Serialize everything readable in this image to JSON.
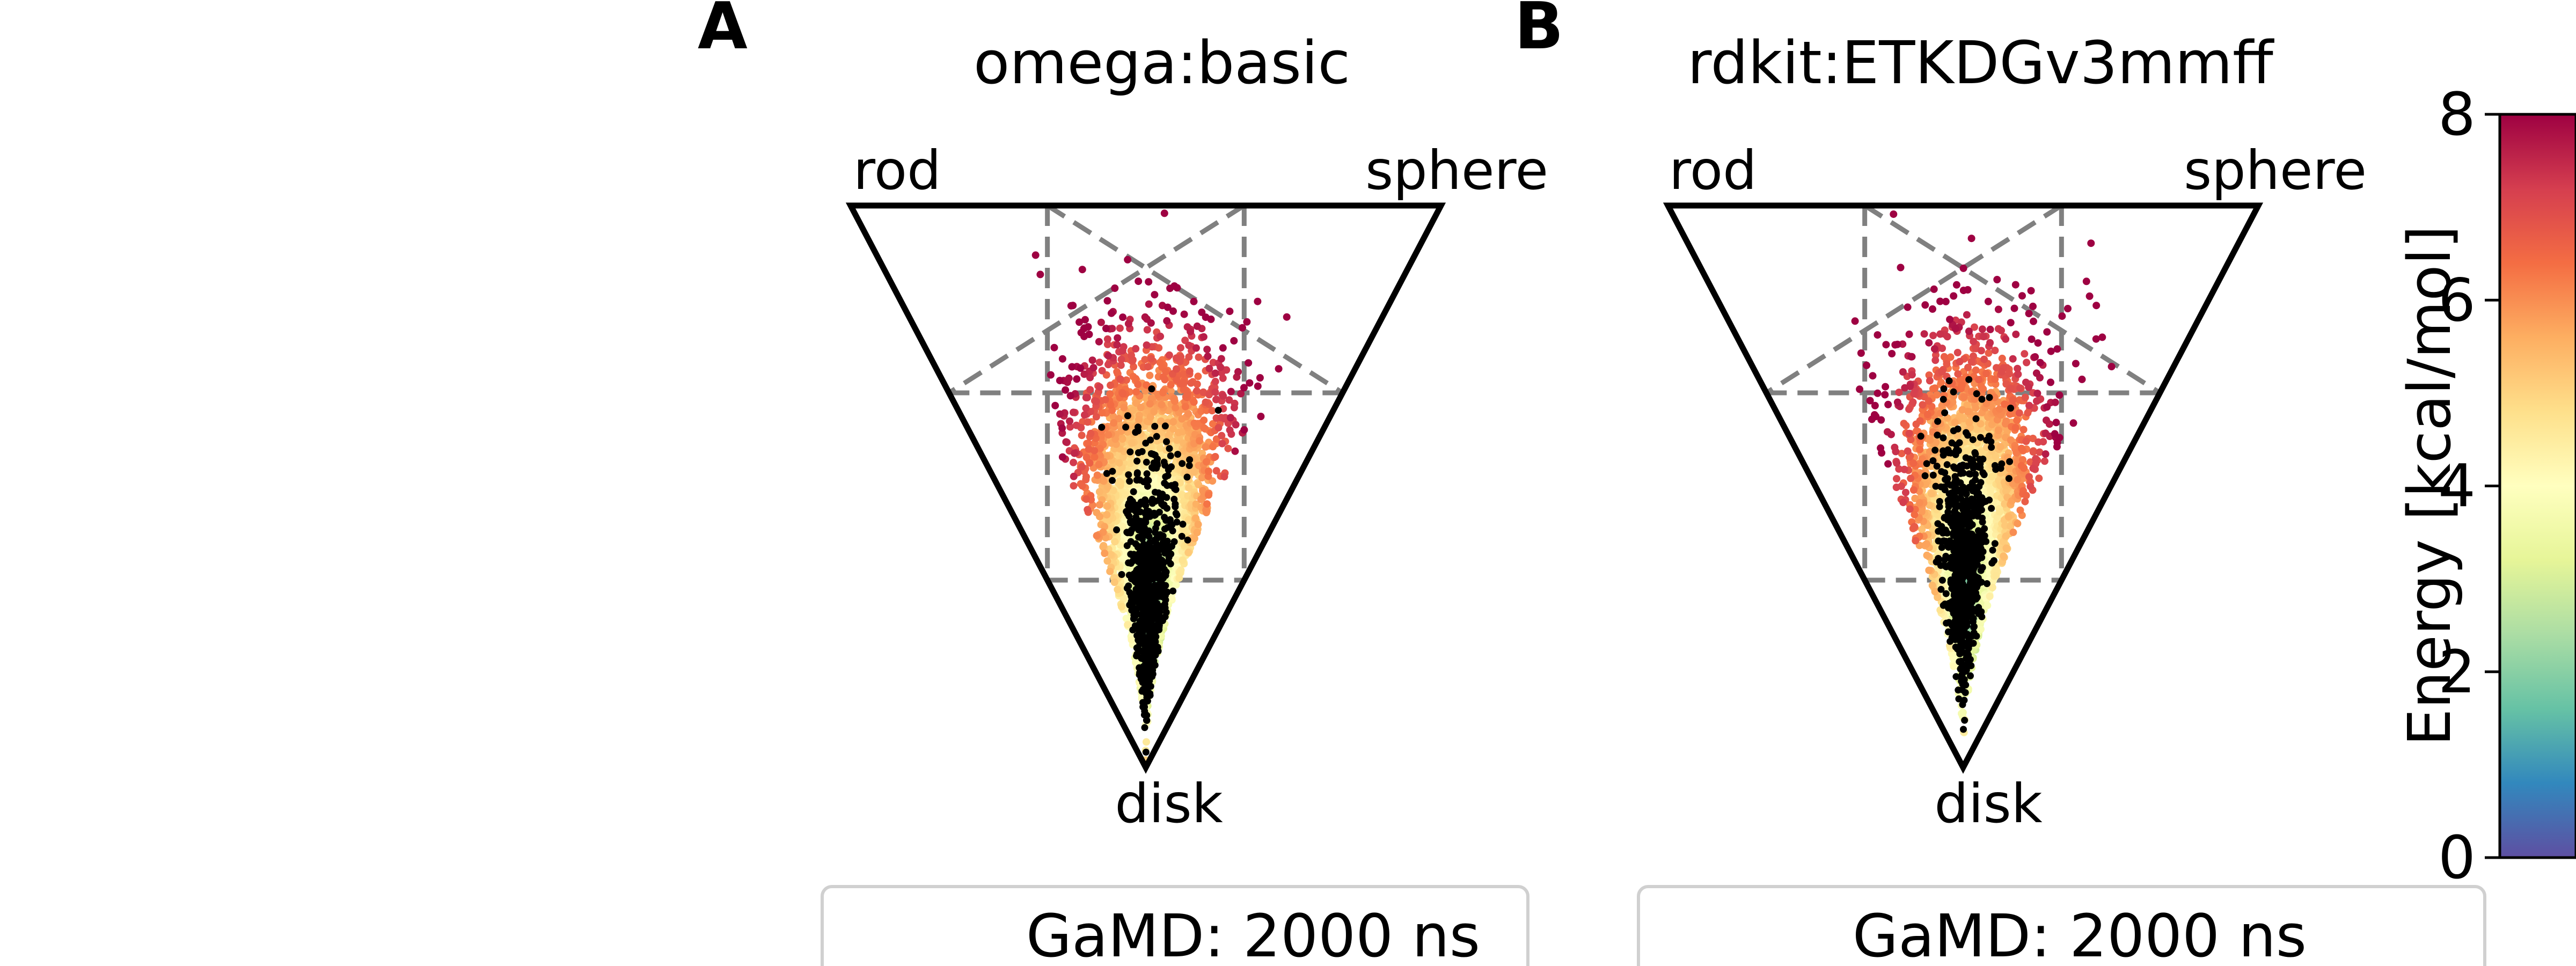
{
  "chart_data": [
    {
      "type": "scatter",
      "panel_label": "A",
      "title": "omega:basic",
      "vertex_labels": {
        "top_left": "rod",
        "top_right": "sphere",
        "bottom": "disk"
      },
      "legend": "GaMD: 2000 ns",
      "grid": true,
      "series": [
        {
          "kind": "reference",
          "color_by": "energy",
          "center": [
            0.52,
            0.55
          ],
          "spread": [
            0.11,
            0.15
          ],
          "energy_range": [
            0,
            8
          ]
        },
        {
          "kind": "conformers",
          "color": "#000000",
          "center": [
            0.52,
            0.68
          ],
          "spread": [
            0.055,
            0.12
          ]
        }
      ]
    },
    {
      "type": "scatter",
      "panel_label": "B",
      "title": "rdkit:ETKDGv3mmff",
      "vertex_labels": {
        "top_left": "rod",
        "top_right": "sphere",
        "bottom": "disk"
      },
      "legend": "GaMD: 2000 ns",
      "grid": true,
      "series": [
        {
          "kind": "reference",
          "color_by": "energy",
          "center": [
            0.52,
            0.55
          ],
          "spread": [
            0.1,
            0.15
          ],
          "energy_range": [
            0,
            8
          ]
        },
        {
          "kind": "conformers",
          "color": "#000000",
          "center": [
            0.5,
            0.62
          ],
          "spread": [
            0.05,
            0.11
          ]
        }
      ]
    }
  ],
  "colorbar": {
    "label": "Energy [kcal/mol]",
    "ticks": [
      "0",
      "2",
      "4",
      "6",
      "8"
    ],
    "range": [
      0,
      8
    ],
    "colormap": [
      "#5e4fa2",
      "#3288bd",
      "#66c2a5",
      "#abdda4",
      "#e6f598",
      "#ffffbf",
      "#fee08b",
      "#fdae61",
      "#f46d43",
      "#d53e4f",
      "#9e0142"
    ]
  }
}
